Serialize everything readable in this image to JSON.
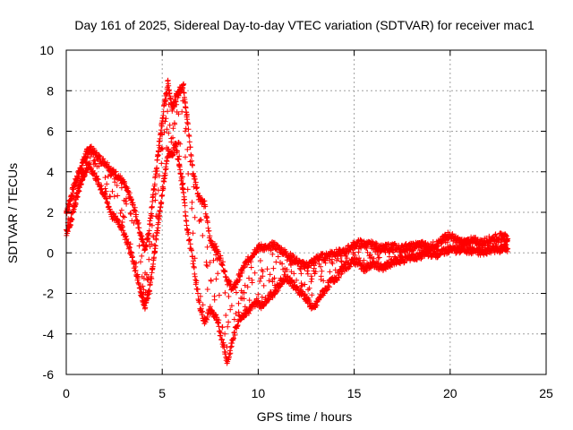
{
  "chart_data": {
    "type": "scatter",
    "title": "Day 161 of 2025, Sidereal Day-to-day VTEC variation (SDTVAR) for receiver mac1",
    "xlabel": "GPS time / hours",
    "ylabel": "SDTVAR / TECUs",
    "xlim": [
      0,
      25
    ],
    "ylim": [
      -6,
      10
    ],
    "xticks": [
      0,
      5,
      10,
      15,
      20,
      25
    ],
    "yticks": [
      -6,
      -4,
      -2,
      0,
      2,
      4,
      6,
      8,
      10
    ],
    "grid": true,
    "marker": "+",
    "series_color": "#ff0000",
    "series": [
      {
        "name": "mac1 SDTVAR",
        "upper": [
          [
            0.0,
            2.0
          ],
          [
            0.2,
            2.6
          ],
          [
            0.4,
            3.3
          ],
          [
            0.6,
            3.8
          ],
          [
            0.8,
            4.3
          ],
          [
            1.0,
            4.8
          ],
          [
            1.2,
            5.2
          ],
          [
            1.5,
            4.9
          ],
          [
            1.8,
            4.6
          ],
          [
            2.1,
            4.4
          ],
          [
            2.4,
            4.0
          ],
          [
            2.7,
            3.8
          ],
          [
            3.0,
            3.4
          ],
          [
            3.3,
            2.8
          ],
          [
            3.6,
            2.0
          ],
          [
            3.9,
            0.8
          ],
          [
            4.1,
            0.2
          ],
          [
            4.3,
            1.0
          ],
          [
            4.5,
            2.6
          ],
          [
            4.7,
            4.2
          ],
          [
            4.9,
            5.8
          ],
          [
            5.1,
            7.2
          ],
          [
            5.3,
            8.4
          ],
          [
            5.5,
            7.2
          ],
          [
            5.7,
            7.6
          ],
          [
            5.9,
            8.0
          ],
          [
            6.1,
            8.3
          ],
          [
            6.3,
            6.6
          ],
          [
            6.6,
            4.0
          ],
          [
            6.9,
            2.8
          ],
          [
            7.2,
            2.4
          ],
          [
            7.5,
            0.6
          ],
          [
            7.8,
            0.2
          ],
          [
            8.1,
            -0.4
          ],
          [
            8.4,
            -1.4
          ],
          [
            8.7,
            -1.8
          ],
          [
            9.0,
            -1.2
          ],
          [
            9.3,
            -0.6
          ],
          [
            9.6,
            -0.2
          ],
          [
            9.9,
            0.2
          ],
          [
            10.2,
            0.3
          ],
          [
            10.5,
            0.2
          ],
          [
            10.8,
            0.4
          ],
          [
            11.1,
            0.2
          ],
          [
            11.4,
            0.0
          ],
          [
            11.7,
            -0.2
          ],
          [
            12.0,
            -0.4
          ],
          [
            12.3,
            -0.6
          ],
          [
            12.6,
            -0.6
          ],
          [
            12.9,
            -0.4
          ],
          [
            13.2,
            -0.2
          ],
          [
            13.5,
            -0.2
          ],
          [
            13.8,
            0.0
          ],
          [
            14.1,
            0.0
          ],
          [
            14.4,
            0.0
          ],
          [
            14.7,
            0.2
          ],
          [
            15.0,
            0.4
          ],
          [
            15.3,
            0.5
          ],
          [
            15.6,
            0.4
          ],
          [
            15.9,
            0.4
          ],
          [
            16.2,
            0.3
          ],
          [
            16.5,
            0.2
          ],
          [
            16.8,
            0.3
          ],
          [
            17.1,
            0.3
          ],
          [
            17.4,
            0.2
          ],
          [
            17.7,
            0.3
          ],
          [
            18.0,
            0.3
          ],
          [
            18.3,
            0.4
          ],
          [
            18.6,
            0.4
          ],
          [
            18.9,
            0.3
          ],
          [
            19.2,
            0.4
          ],
          [
            19.5,
            0.5
          ],
          [
            19.8,
            0.9
          ],
          [
            20.1,
            0.8
          ],
          [
            20.4,
            0.6
          ],
          [
            20.7,
            0.5
          ],
          [
            21.0,
            0.6
          ],
          [
            21.3,
            0.6
          ],
          [
            21.6,
            0.5
          ],
          [
            21.9,
            0.6
          ],
          [
            22.2,
            0.7
          ],
          [
            22.5,
            0.8
          ],
          [
            22.8,
            0.8
          ],
          [
            23.0,
            0.7
          ]
        ],
        "lower": [
          [
            0.0,
            1.0
          ],
          [
            0.2,
            1.4
          ],
          [
            0.4,
            2.2
          ],
          [
            0.6,
            3.0
          ],
          [
            0.8,
            3.6
          ],
          [
            1.0,
            4.0
          ],
          [
            1.2,
            4.3
          ],
          [
            1.5,
            3.8
          ],
          [
            1.8,
            3.2
          ],
          [
            2.1,
            2.6
          ],
          [
            2.4,
            1.8
          ],
          [
            2.7,
            1.6
          ],
          [
            3.0,
            1.0
          ],
          [
            3.3,
            0.2
          ],
          [
            3.6,
            -0.8
          ],
          [
            3.9,
            -2.0
          ],
          [
            4.1,
            -2.6
          ],
          [
            4.3,
            -2.0
          ],
          [
            4.5,
            -0.8
          ],
          [
            4.7,
            0.8
          ],
          [
            4.9,
            2.2
          ],
          [
            5.1,
            3.6
          ],
          [
            5.3,
            5.0
          ],
          [
            5.5,
            4.8
          ],
          [
            5.7,
            5.4
          ],
          [
            5.9,
            4.2
          ],
          [
            6.1,
            3.0
          ],
          [
            6.3,
            1.2
          ],
          [
            6.6,
            -0.4
          ],
          [
            6.9,
            -2.4
          ],
          [
            7.2,
            -3.4
          ],
          [
            7.5,
            -2.8
          ],
          [
            7.8,
            -3.2
          ],
          [
            8.1,
            -4.2
          ],
          [
            8.4,
            -5.4
          ],
          [
            8.7,
            -4.2
          ],
          [
            9.0,
            -3.2
          ],
          [
            9.3,
            -3.0
          ],
          [
            9.6,
            -2.8
          ],
          [
            9.9,
            -2.4
          ],
          [
            10.2,
            -2.6
          ],
          [
            10.5,
            -2.2
          ],
          [
            10.8,
            -2.0
          ],
          [
            11.1,
            -1.6
          ],
          [
            11.4,
            -1.2
          ],
          [
            11.7,
            -1.4
          ],
          [
            12.0,
            -1.8
          ],
          [
            12.3,
            -2.0
          ],
          [
            12.6,
            -2.4
          ],
          [
            12.9,
            -2.8
          ],
          [
            13.2,
            -2.2
          ],
          [
            13.5,
            -1.8
          ],
          [
            13.8,
            -1.4
          ],
          [
            14.1,
            -1.2
          ],
          [
            14.4,
            -0.8
          ],
          [
            14.7,
            -0.6
          ],
          [
            15.0,
            -0.4
          ],
          [
            15.3,
            -0.6
          ],
          [
            15.6,
            -0.8
          ],
          [
            15.9,
            -0.6
          ],
          [
            16.2,
            -0.6
          ],
          [
            16.5,
            -0.8
          ],
          [
            16.8,
            -0.6
          ],
          [
            17.1,
            -0.4
          ],
          [
            17.4,
            -0.4
          ],
          [
            17.7,
            -0.3
          ],
          [
            18.0,
            -0.2
          ],
          [
            18.3,
            -0.2
          ],
          [
            18.6,
            -0.1
          ],
          [
            18.9,
            0.0
          ],
          [
            19.2,
            -0.1
          ],
          [
            19.5,
            0.0
          ],
          [
            19.8,
            0.1
          ],
          [
            20.1,
            0.2
          ],
          [
            20.4,
            0.1
          ],
          [
            20.7,
            0.2
          ],
          [
            21.0,
            0.1
          ],
          [
            21.3,
            0.1
          ],
          [
            21.6,
            0.0
          ],
          [
            21.9,
            0.1
          ],
          [
            22.2,
            0.2
          ],
          [
            22.5,
            0.1
          ],
          [
            22.8,
            0.3
          ],
          [
            23.0,
            0.2
          ]
        ]
      }
    ]
  }
}
